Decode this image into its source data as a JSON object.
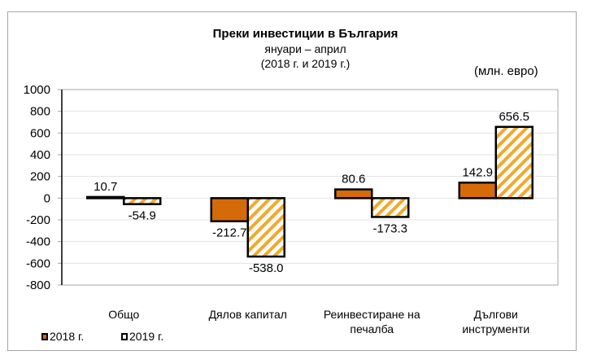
{
  "chart_data": {
    "type": "bar",
    "title": "Преки  инвестиции в България",
    "subtitle_lines": [
      "януари – април",
      "(2018 г. и 2019 г.)"
    ],
    "unit_label": "(млн. евро)",
    "xlabel": "",
    "ylabel": "",
    "ylim": [
      -800,
      1000
    ],
    "yticks": [
      1000,
      800,
      600,
      400,
      200,
      0,
      -200,
      -400,
      -600,
      -800
    ],
    "grid": true,
    "legend_position": "bottom-left",
    "categories": [
      "Общо",
      "Дялов капитал",
      "Реинвестиране на печалба",
      "Дългови инструменти"
    ],
    "category_lines": [
      [
        "Общо"
      ],
      [
        "Дялов капитал"
      ],
      [
        "Реинвестиране на",
        "печалба"
      ],
      [
        "Дългови",
        "инструменти"
      ]
    ],
    "series": [
      {
        "name": "2018 г.",
        "values": [
          10.7,
          -212.7,
          80.6,
          142.9
        ],
        "labels": [
          "10.7",
          "-212.7",
          "80.6",
          "142.9"
        ],
        "color": "#d46b08",
        "pattern": "solid"
      },
      {
        "name": "2019 г.",
        "values": [
          -54.9,
          -538.0,
          -173.3,
          656.5
        ],
        "labels": [
          "-54.9",
          "-538.0",
          "-173.3",
          "656.5"
        ],
        "color": "#f0a830",
        "pattern": "diagonal-stripes"
      }
    ]
  },
  "colors": {
    "border": "#a6a6a6",
    "grid": "#e3e3e3",
    "bar_outline": "#000000"
  }
}
